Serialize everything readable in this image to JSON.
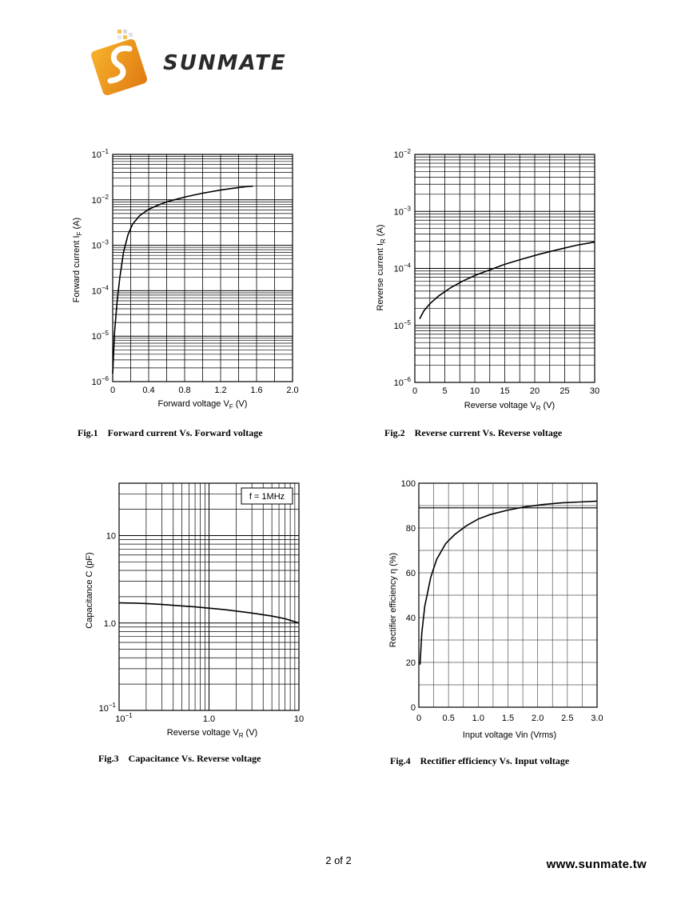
{
  "brand": {
    "name": "SUNMATE",
    "accent_orange": "#e8901c",
    "logo_dark": "#222222"
  },
  "footer": {
    "page": "2 of 2",
    "website": "www.sunmate.tw"
  },
  "chart_data": [
    {
      "id": "fig1",
      "type": "line",
      "caption": "Fig.1    Forward current Vs. Forward voltage",
      "xlabel": "Forward voltage  V",
      "xlabel_sub": "F",
      "xlabel_unit": "(V)",
      "ylabel": "Forward current  I",
      "ylabel_sub": "F",
      "ylabel_unit": "(A)",
      "xscale": "linear",
      "yscale": "log",
      "xlim": [
        0,
        2.0
      ],
      "ylim_exp": [
        -6,
        -1
      ],
      "x_ticks": [
        0,
        0.4,
        0.8,
        1.2,
        1.6,
        2.0
      ],
      "x_tick_labels": [
        "0",
        "0.4",
        "0.8",
        "1.2",
        "1.6",
        "2.0"
      ],
      "y_tick_exps": [
        -6,
        -5,
        -4,
        -3,
        -2,
        -1
      ],
      "y_tick_prefix": "10",
      "grid": true,
      "series": [
        {
          "x": [
            0.0,
            0.02,
            0.05,
            0.08,
            0.12,
            0.17,
            0.22,
            0.3,
            0.4,
            0.5,
            0.6,
            0.7,
            0.8,
            0.9,
            1.0,
            1.1,
            1.2,
            1.3,
            1.4,
            1.5,
            1.56
          ],
          "y": [
            1.5e-06,
            1.2e-05,
            6e-05,
            0.0002,
            0.0007,
            0.0017,
            0.0029,
            0.0045,
            0.0062,
            0.0076,
            0.009,
            0.0102,
            0.0115,
            0.0127,
            0.014,
            0.0152,
            0.0164,
            0.0176,
            0.0187,
            0.0197,
            0.02
          ]
        }
      ]
    },
    {
      "id": "fig2",
      "type": "line",
      "caption": "Fig.2    Reverse current Vs. Reverse voltage",
      "xlabel": "Reverse voltage  V",
      "xlabel_sub": "R",
      "xlabel_unit": "(V)",
      "ylabel": "Reverse current  I",
      "ylabel_sub": "R",
      "ylabel_unit": "(A)",
      "xscale": "linear",
      "yscale": "log",
      "xlim": [
        0,
        30
      ],
      "ylim_exp": [
        -6,
        -2
      ],
      "x_ticks": [
        0,
        5,
        10,
        15,
        20,
        25,
        30
      ],
      "x_tick_labels": [
        "0",
        "5",
        "10",
        "15",
        "20",
        "25",
        "30"
      ],
      "y_tick_exps": [
        -6,
        -5,
        -4,
        -3,
        -2
      ],
      "y_tick_prefix": "10",
      "grid": true,
      "series": [
        {
          "x": [
            0.8,
            1.5,
            2.5,
            4,
            6,
            8,
            10,
            12,
            15,
            18,
            21,
            24,
            27,
            30
          ],
          "y": [
            1.3e-05,
            1.8e-05,
            2.4e-05,
            3.3e-05,
            4.6e-05,
            6e-05,
            7.5e-05,
            9e-05,
            0.000118,
            0.000147,
            0.00018,
            0.000215,
            0.000255,
            0.00029
          ]
        }
      ]
    },
    {
      "id": "fig3",
      "type": "line",
      "caption": "Fig.3    Capacitance Vs. Reverse voltage",
      "xlabel": "Reverse voltage  V",
      "xlabel_sub": "R",
      "xlabel_unit": "(V)",
      "ylabel": "Capacitance  C  (pF)",
      "xscale": "log",
      "yscale": "log",
      "x_decades": [
        -1,
        1
      ],
      "y_decades": [
        -1,
        1.6
      ],
      "x_tick_labels": [
        {
          "v": 0.1,
          "base": "10",
          "exp": "-1"
        },
        {
          "v": 1,
          "text": "1.0"
        },
        {
          "v": 10,
          "text": "10"
        }
      ],
      "y_tick_labels": [
        {
          "v": 0.1,
          "base": "10",
          "exp": "-1"
        },
        {
          "v": 1,
          "text": "1.0"
        },
        {
          "v": 10,
          "text": "10"
        }
      ],
      "annotation": "f = 1MHz",
      "grid": true,
      "series": [
        {
          "x": [
            0.1,
            0.15,
            0.2,
            0.3,
            0.5,
            0.7,
            1.0,
            1.5,
            2,
            3,
            5,
            7,
            10
          ],
          "y": [
            1.7,
            1.69,
            1.67,
            1.63,
            1.57,
            1.53,
            1.48,
            1.42,
            1.37,
            1.3,
            1.2,
            1.12,
            1.0
          ]
        }
      ]
    },
    {
      "id": "fig4",
      "type": "line",
      "caption": "Fig.4    Rectifier efficiency Vs. Input voltage",
      "xlabel": "Input voltage  Vin  (Vrms)",
      "ylabel": "Rectifier efficiency   η   (%)",
      "xscale": "linear",
      "yscale": "linear",
      "xlim": [
        0,
        3.0
      ],
      "ylim": [
        0,
        100
      ],
      "x_ticks": [
        0,
        0.5,
        1.0,
        1.5,
        2.0,
        2.5,
        3.0
      ],
      "x_tick_labels": [
        "0",
        "0.5",
        "1.0",
        "1.5",
        "2.0",
        "2.5",
        "3.0"
      ],
      "y_ticks": [
        0,
        20,
        40,
        60,
        80,
        100
      ],
      "y_tick_labels": [
        "0",
        "20",
        "40",
        "60",
        "80",
        "100"
      ],
      "reference_line_y": 89,
      "grid": true,
      "series": [
        {
          "x": [
            0.02,
            0.05,
            0.1,
            0.2,
            0.3,
            0.45,
            0.6,
            0.8,
            1.0,
            1.2,
            1.5,
            1.8,
            2.1,
            2.4,
            2.7,
            3.0
          ],
          "y": [
            19,
            33,
            45,
            58,
            66,
            73,
            77,
            81,
            84,
            86,
            88,
            89.5,
            90.5,
            91.2,
            91.6,
            92
          ]
        }
      ]
    }
  ]
}
